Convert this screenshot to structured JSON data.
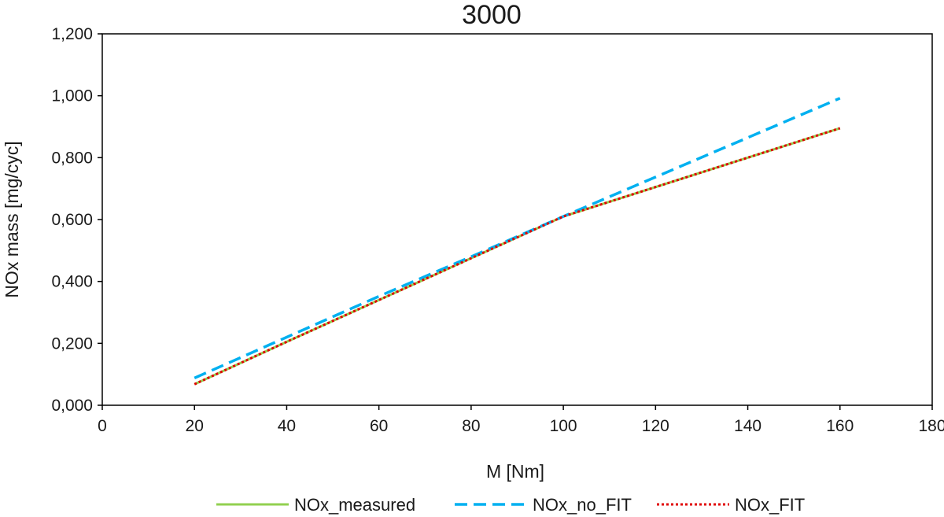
{
  "chart_data": {
    "type": "line",
    "title": "3000",
    "xlabel": "M [Nm]",
    "ylabel": "NOx mass [mg/cyc]",
    "xlim": [
      0,
      180
    ],
    "ylim": [
      0,
      1.2
    ],
    "x_ticks": [
      "0",
      "20",
      "40",
      "60",
      "80",
      "100",
      "120",
      "140",
      "160",
      "180"
    ],
    "y_ticks": [
      "0,000",
      "0,200",
      "0,400",
      "0,600",
      "0,800",
      "1,000",
      "1,200"
    ],
    "grid": false,
    "legend_position": "bottom",
    "x": [
      20,
      40,
      60,
      80,
      100,
      160
    ],
    "series": [
      {
        "name": "NOx_measured",
        "color": "#92d050",
        "style": "solid",
        "values": [
          0.068,
          0.205,
          0.34,
          0.475,
          0.61,
          0.895
        ]
      },
      {
        "name": "NOx_no_FIT",
        "color": "#00b0f0",
        "style": "dashed",
        "values": [
          0.088,
          0.22,
          0.352,
          0.48,
          0.61,
          0.992
        ]
      },
      {
        "name": "NOx_FIT",
        "color": "#e00000",
        "style": "dotted",
        "values": [
          0.068,
          0.205,
          0.34,
          0.475,
          0.61,
          0.895
        ]
      }
    ]
  }
}
